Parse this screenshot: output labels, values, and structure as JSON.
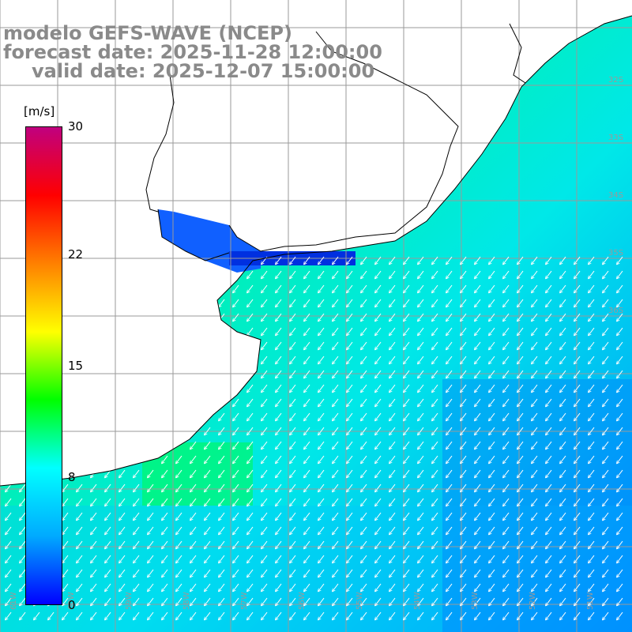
{
  "title": {
    "line1": "modelo GEFS-WAVE (NCEP)",
    "line2": "forecast date: 2025-11-28 12:00:00",
    "line3": "valid date: 2025-12-07 15:00:00"
  },
  "colorbar": {
    "unit": "[m/s]",
    "ticks": [
      "30",
      "22",
      "15",
      "8",
      "0"
    ],
    "tick_values": [
      30,
      22,
      15,
      8,
      0
    ],
    "range": [
      0,
      30
    ],
    "colors": [
      "#0000ff",
      "#00aaff",
      "#00ffff",
      "#00ff00",
      "#ffff00",
      "#ff8000",
      "#ff0000",
      "#c0007f"
    ]
  },
  "map": {
    "variable": "wind speed and direction",
    "lat_labels": [
      "32S",
      "33S",
      "34S",
      "35S",
      "36S"
    ],
    "lon_labels": [
      "61W",
      "60W",
      "59W",
      "58W",
      "57W",
      "56W",
      "55W",
      "54W",
      "53W",
      "52W",
      "51W"
    ],
    "land_color": "#ffffff",
    "grid_color": "#9a9a9a",
    "coast_color": "#000000"
  }
}
